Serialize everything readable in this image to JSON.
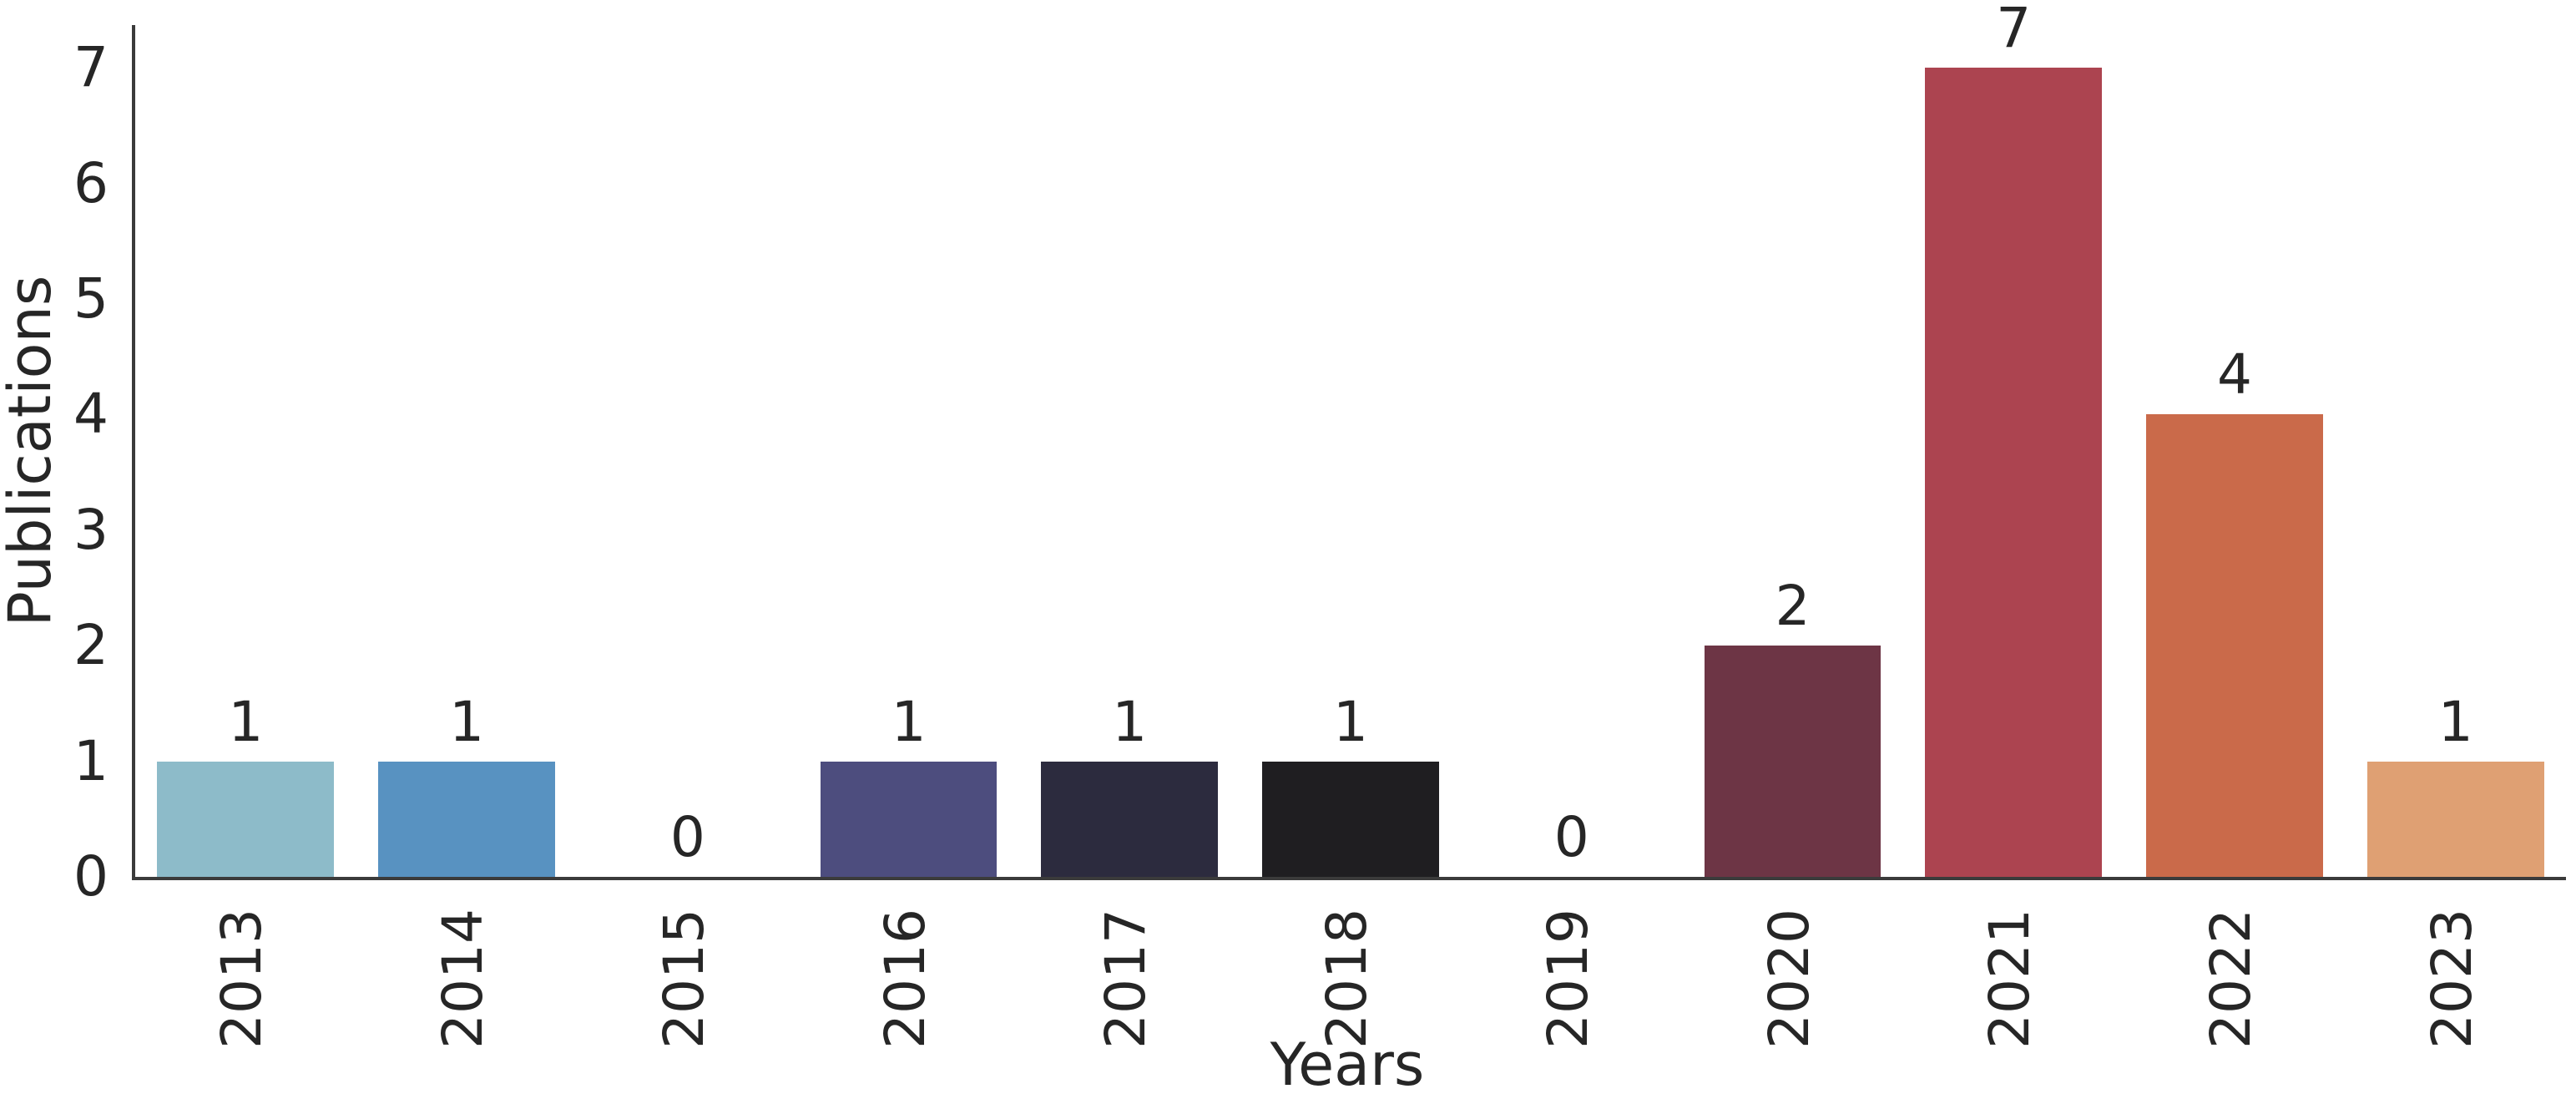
{
  "chart_data": {
    "type": "bar",
    "title": "",
    "xlabel": "Years",
    "ylabel": "Publications",
    "categories": [
      "2013",
      "2014",
      "2015",
      "2016",
      "2017",
      "2018",
      "2019",
      "2020",
      "2021",
      "2022",
      "2023"
    ],
    "values": [
      1,
      1,
      0,
      1,
      1,
      1,
      0,
      2,
      7,
      4,
      1
    ],
    "bar_value_labels": [
      "1",
      "1",
      "0",
      "1",
      "1",
      "1",
      "0",
      "2",
      "7",
      "4",
      "1"
    ],
    "bar_colors": [
      "#8dbbc9",
      "#5892c1",
      "#4a5bb0",
      "#4d4d7e",
      "#2c2b3e",
      "#1f1e21",
      "#45232e",
      "#6d3545",
      "#ac4450",
      "#ca6a4a",
      "#dfa073"
    ],
    "yticks": [
      "0",
      "1",
      "2",
      "3",
      "4",
      "5",
      "6",
      "7"
    ],
    "ylim": [
      0,
      7.37
    ],
    "grid": false,
    "legend": null,
    "axis_color": "#3b3b3b",
    "text_color": "#262626",
    "background_color": "#ffffff"
  }
}
